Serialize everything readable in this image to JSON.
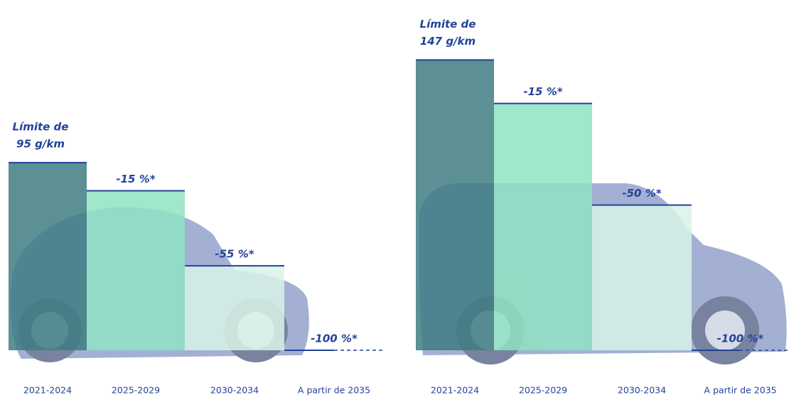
{
  "chart_data": [
    {
      "type": "limit-steps",
      "limit": {
        "value": 95,
        "label": [
          "Límite de",
          "95 g/km"
        ]
      },
      "categories": [
        "2021-2024",
        "2025-2029",
        "2030-2034",
        "A partir de 2035"
      ],
      "values": [
        null,
        -15,
        -55,
        -100
      ],
      "value_labels": [
        null,
        "-15 %*",
        "-55 %*",
        "-100 %*"
      ],
      "colors": [
        "#3f7c82",
        "#8fe3c3",
        "#d9f3e8",
        "#ffffff"
      ]
    },
    {
      "type": "limit-steps",
      "limit": {
        "value": 147,
        "label": [
          "Límite de",
          "147 g/km"
        ]
      },
      "categories": [
        "2021-2024",
        "2025-2029",
        "2030-2034",
        "A partir de 2035"
      ],
      "values": [
        null,
        -15,
        -50,
        -100
      ],
      "value_labels": [
        null,
        "-15 %*",
        "-50 %*",
        "-100 %*"
      ],
      "colors": [
        "#3f7c82",
        "#8fe3c3",
        "#d9f3e8",
        "#ffffff"
      ]
    }
  ]
}
